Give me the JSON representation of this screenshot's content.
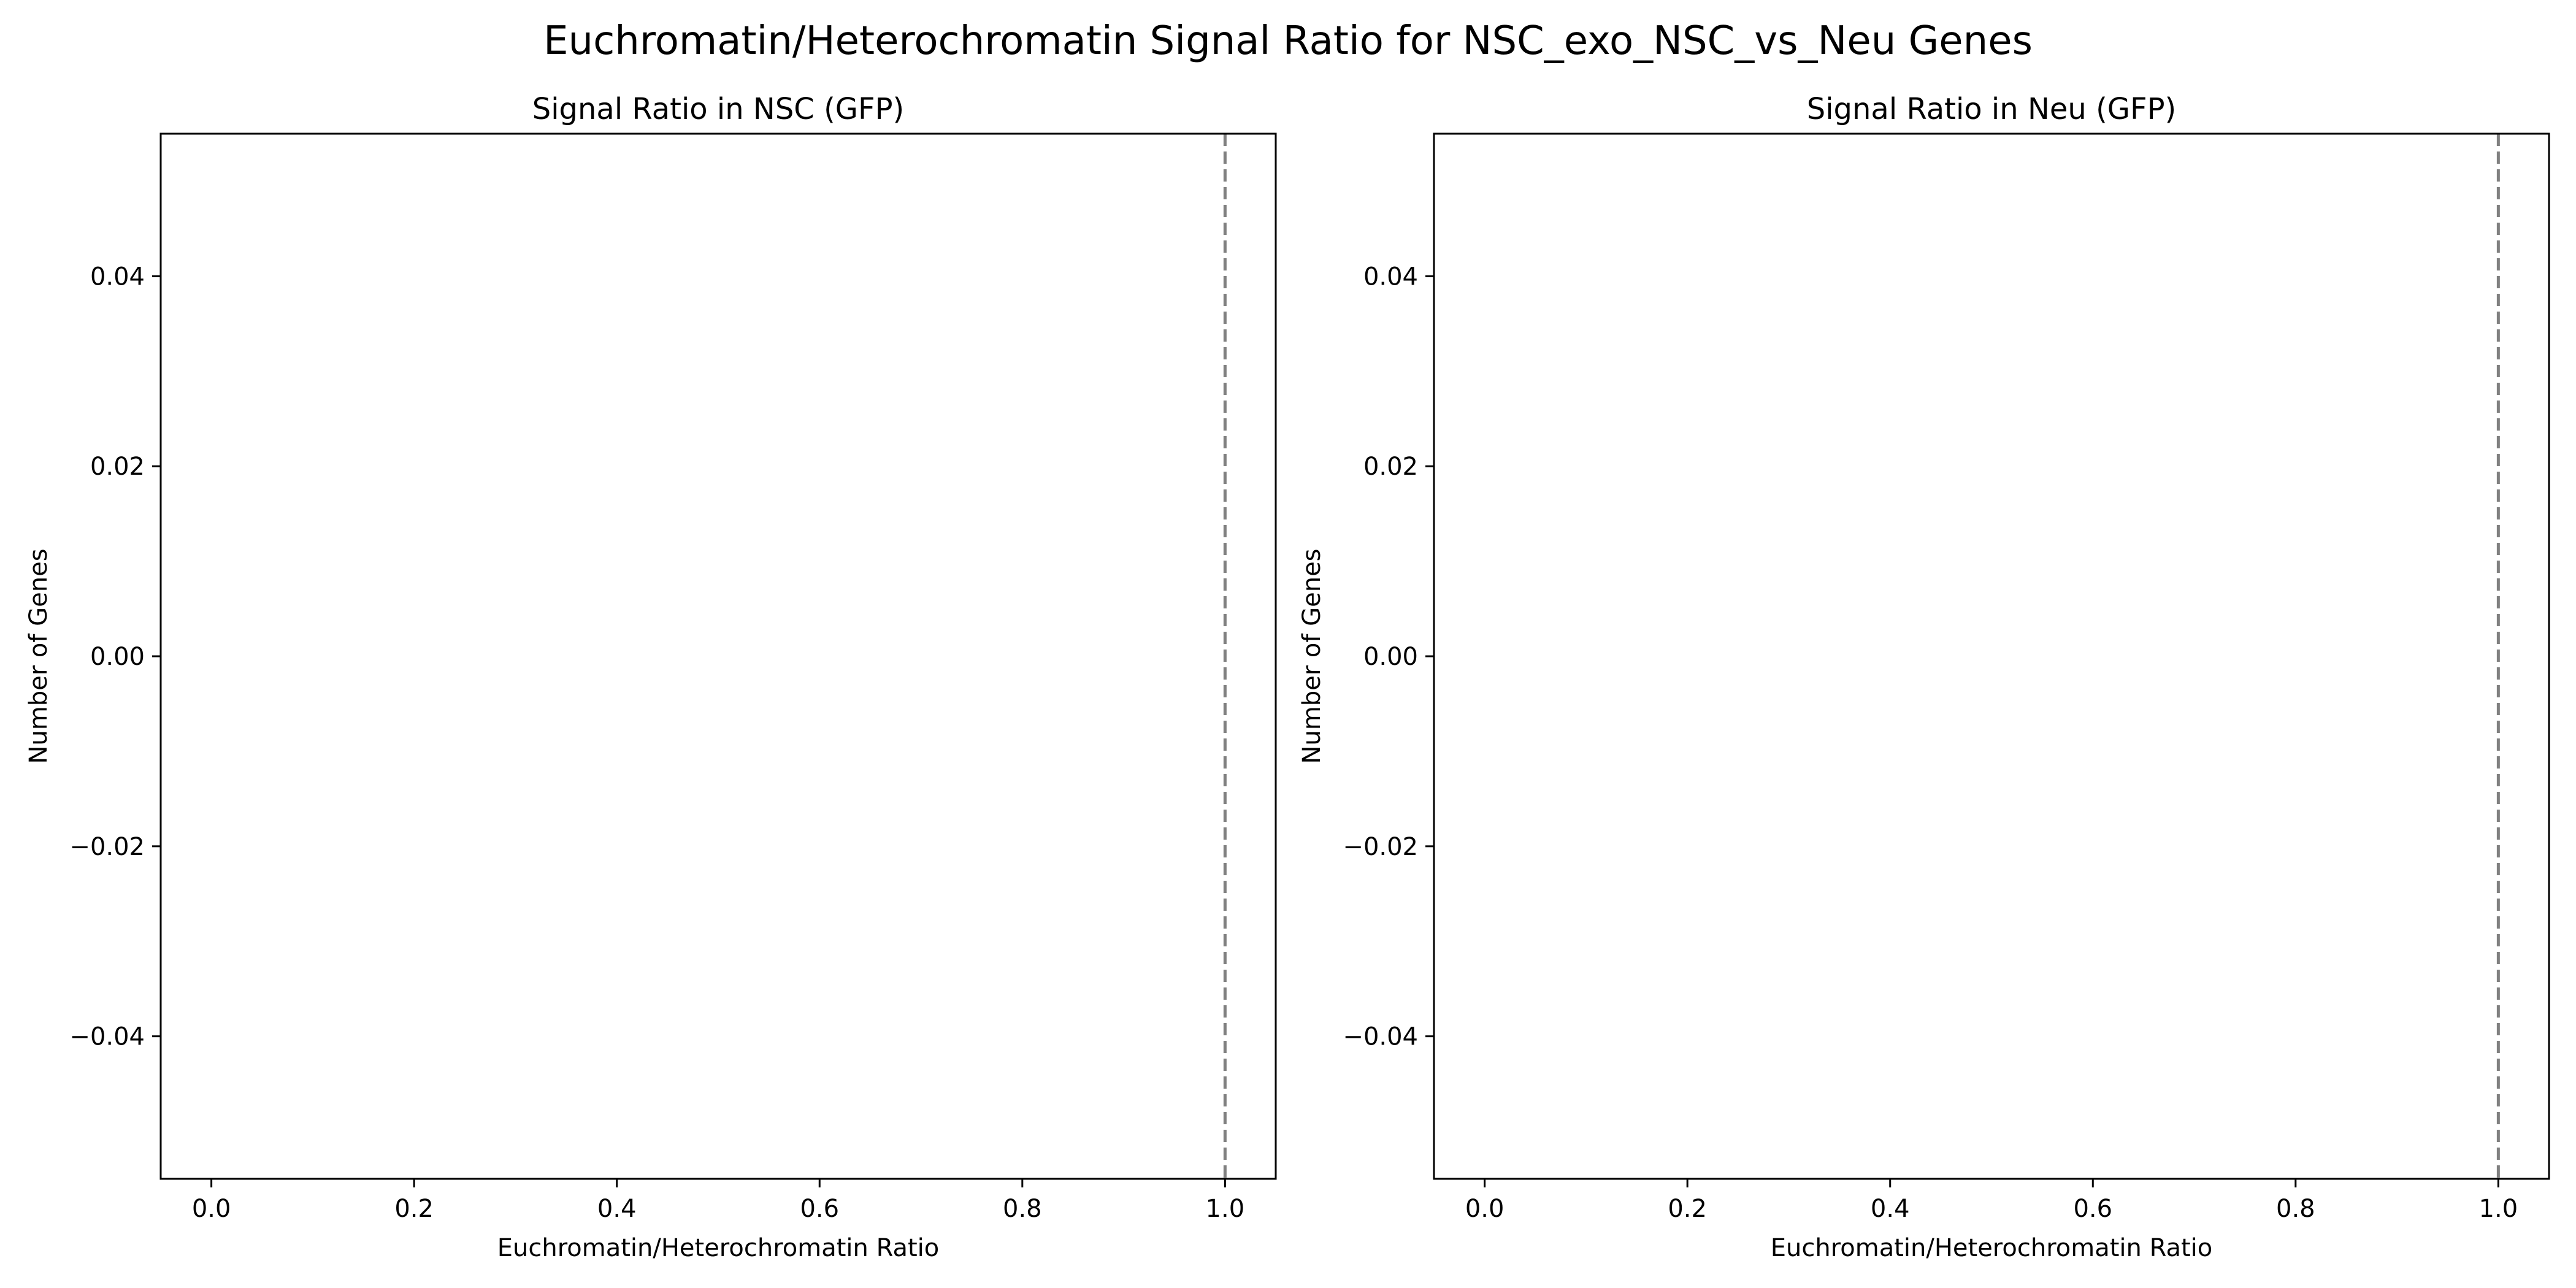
{
  "figure": {
    "title": "Euchromatin/Heterochromatin Signal Ratio for NSC_exo_NSC_vs_Neu Genes"
  },
  "chart_data": [
    {
      "type": "bar",
      "title": "Signal Ratio in NSC (GFP)",
      "xlabel": "Euchromatin/Heterochromatin Ratio",
      "ylabel": "Number of Genes",
      "xlim": [
        -0.05,
        1.05
      ],
      "ylim": [
        -0.055,
        0.055
      ],
      "xticks": [
        0.0,
        0.2,
        0.4,
        0.6,
        0.8,
        1.0
      ],
      "xtick_labels": [
        "0.0",
        "0.2",
        "0.4",
        "0.6",
        "0.8",
        "1.0"
      ],
      "yticks": [
        0.04,
        0.02,
        0.0,
        -0.02,
        -0.04
      ],
      "ytick_labels": [
        "0.04",
        "0.02",
        "0.00",
        "−0.02",
        "−0.04"
      ],
      "values": [],
      "reference_line": {
        "orientation": "vertical",
        "x": 1.0,
        "style": "dashed",
        "color": "#808080"
      },
      "grid": false
    },
    {
      "type": "bar",
      "title": "Signal Ratio in Neu (GFP)",
      "xlabel": "Euchromatin/Heterochromatin Ratio",
      "ylabel": "Number of Genes",
      "xlim": [
        -0.05,
        1.05
      ],
      "ylim": [
        -0.055,
        0.055
      ],
      "xticks": [
        0.0,
        0.2,
        0.4,
        0.6,
        0.8,
        1.0
      ],
      "xtick_labels": [
        "0.0",
        "0.2",
        "0.4",
        "0.6",
        "0.8",
        "1.0"
      ],
      "yticks": [
        0.04,
        0.02,
        0.0,
        -0.02,
        -0.04
      ],
      "ytick_labels": [
        "0.04",
        "0.02",
        "0.00",
        "−0.02",
        "−0.04"
      ],
      "values": [],
      "reference_line": {
        "orientation": "vertical",
        "x": 1.0,
        "style": "dashed",
        "color": "#808080"
      },
      "grid": false
    }
  ]
}
